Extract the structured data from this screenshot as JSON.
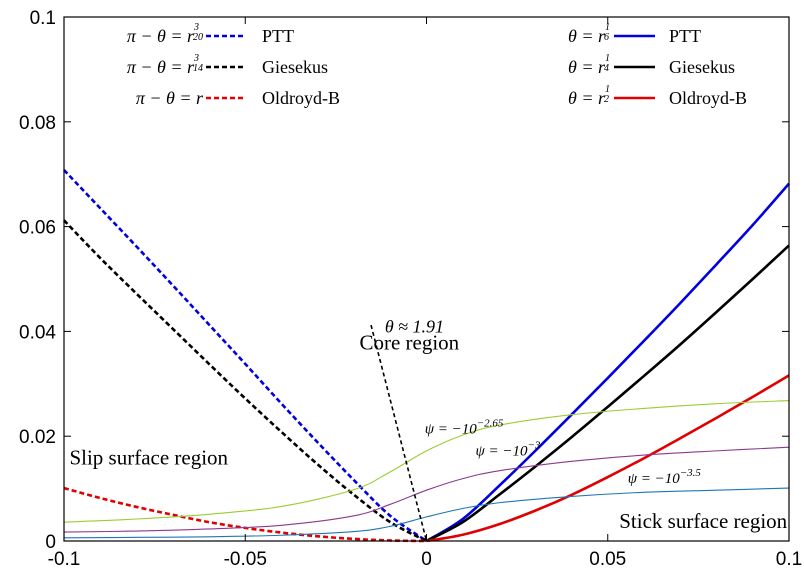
{
  "chart_data": {
    "type": "line",
    "xlim": [
      -0.1,
      0.1
    ],
    "ylim": [
      0,
      0.1
    ],
    "x_ticks": [
      -0.1,
      -0.05,
      0,
      0.05,
      0.1
    ],
    "x_tick_labels": [
      "-0.1",
      "-0.05",
      "0",
      "0.05",
      "0.1"
    ],
    "y_ticks": [
      0,
      0.02,
      0.04,
      0.06,
      0.08,
      0.1
    ],
    "y_tick_labels": [
      "0",
      "0.02",
      "0.04",
      "0.06",
      "0.08",
      "0.1"
    ],
    "grid": false,
    "series": [
      {
        "name": "PTT",
        "color": "#0000e0",
        "dash": true,
        "x": [
          -0.1,
          -0.09,
          -0.08,
          -0.07,
          -0.06,
          -0.05,
          -0.04,
          -0.03,
          -0.02,
          -0.01,
          0
        ],
        "y": [
          0.0708,
          0.0635,
          0.0562,
          0.0488,
          0.0413,
          0.0338,
          0.0262,
          0.0188,
          0.0116,
          0.0048,
          0
        ]
      },
      {
        "name": "Giesekus",
        "color": "#000000",
        "dash": true,
        "x": [
          -0.1,
          -0.09,
          -0.08,
          -0.07,
          -0.06,
          -0.05,
          -0.04,
          -0.03,
          -0.02,
          -0.01,
          0
        ],
        "y": [
          0.0612,
          0.054,
          0.0472,
          0.0405,
          0.0338,
          0.0272,
          0.0208,
          0.0146,
          0.0088,
          0.0036,
          0
        ]
      },
      {
        "name": "Oldroyd-B",
        "color": "#e00000",
        "dash": true,
        "x": [
          -0.1,
          -0.09,
          -0.08,
          -0.07,
          -0.06,
          -0.05,
          -0.04,
          -0.03,
          -0.02,
          -0.01,
          0
        ],
        "y": [
          0.0101,
          0.0082,
          0.0065,
          0.005,
          0.0036,
          0.0025,
          0.0016,
          0.0009,
          0.0004,
          0.0001,
          0
        ]
      },
      {
        "name": "PTT",
        "color": "#0000e0",
        "dash": false,
        "x": [
          0,
          0.01,
          0.02,
          0.03,
          0.04,
          0.05,
          0.06,
          0.07,
          0.08,
          0.09,
          0.1
        ],
        "y": [
          0,
          0.0042,
          0.0105,
          0.0172,
          0.0241,
          0.0311,
          0.0382,
          0.0454,
          0.0528,
          0.0603,
          0.0682
        ]
      },
      {
        "name": "Giesekus",
        "color": "#000000",
        "dash": false,
        "x": [
          0,
          0.01,
          0.02,
          0.03,
          0.04,
          0.05,
          0.06,
          0.07,
          0.08,
          0.09,
          0.1
        ],
        "y": [
          0,
          0.0036,
          0.0088,
          0.0142,
          0.0198,
          0.0256,
          0.0315,
          0.0375,
          0.0437,
          0.05,
          0.0564
        ]
      },
      {
        "name": "Oldroyd-B",
        "color": "#e00000",
        "dash": false,
        "x": [
          0,
          0.01,
          0.02,
          0.03,
          0.04,
          0.05,
          0.06,
          0.07,
          0.08,
          0.09,
          0.1
        ],
        "y": [
          0,
          0.0012,
          0.0032,
          0.0058,
          0.0088,
          0.0122,
          0.0158,
          0.0196,
          0.0235,
          0.0275,
          0.0316
        ]
      },
      {
        "name": "ψ = −10^−2.65",
        "color": "#9acd32",
        "dash": false,
        "x": [
          -0.1,
          -0.08,
          -0.06,
          -0.04,
          -0.02,
          -0.01,
          0,
          0.01,
          0.02,
          0.04,
          0.06,
          0.08,
          0.1
        ],
        "y": [
          0.0036,
          0.0042,
          0.0051,
          0.0066,
          0.0098,
          0.0132,
          0.0172,
          0.0202,
          0.0221,
          0.0241,
          0.0253,
          0.0262,
          0.0268
        ]
      },
      {
        "name": "ψ = −10^−3",
        "color": "#8b3a8b",
        "dash": false,
        "x": [
          -0.1,
          -0.08,
          -0.06,
          -0.04,
          -0.02,
          -0.01,
          0,
          0.01,
          0.02,
          0.04,
          0.06,
          0.08,
          0.1
        ],
        "y": [
          0.0017,
          0.0019,
          0.0023,
          0.003,
          0.0048,
          0.007,
          0.0097,
          0.0119,
          0.0134,
          0.0152,
          0.0164,
          0.0172,
          0.0179
        ]
      },
      {
        "name": "ψ = −10^−3.5",
        "color": "#1f77b4",
        "dash": false,
        "x": [
          -0.1,
          -0.08,
          -0.06,
          -0.04,
          -0.02,
          -0.01,
          0,
          0.01,
          0.02,
          0.04,
          0.06,
          0.08,
          0.1
        ],
        "y": [
          0.0006,
          0.0007,
          0.0008,
          0.0011,
          0.0018,
          0.0028,
          0.0046,
          0.0062,
          0.0073,
          0.0085,
          0.0093,
          0.0097,
          0.0101
        ]
      }
    ],
    "boundary_line": {
      "label": "θ ≈ 1.91",
      "color": "#000000",
      "dash": true,
      "x": [
        -0.0153,
        0
      ],
      "y": [
        0.0412,
        0
      ]
    },
    "legend_left": [
      {
        "formula": "π − θ = r",
        "exp_num": "3",
        "exp_den": "20",
        "name": "PTT",
        "color": "#0000e0",
        "dash": true
      },
      {
        "formula": "π − θ = r",
        "exp_num": "3",
        "exp_den": "14",
        "name": "Giesekus",
        "color": "#000000",
        "dash": true
      },
      {
        "formula": "π − θ = r",
        "exp_num": "",
        "exp_den": "",
        "name": "Oldroyd-B",
        "color": "#e00000",
        "dash": true
      }
    ],
    "legend_right": [
      {
        "formula": "θ = r",
        "exp_num": "1",
        "exp_den": "6",
        "name": "PTT",
        "color": "#0000e0",
        "dash": false
      },
      {
        "formula": "θ = r",
        "exp_num": "1",
        "exp_den": "4",
        "name": "Giesekus",
        "color": "#000000",
        "dash": false
      },
      {
        "formula": "θ = r",
        "exp_num": "1",
        "exp_den": "2",
        "name": "Oldroyd-B",
        "color": "#e00000",
        "dash": false
      }
    ],
    "annotations": {
      "core_region": {
        "text": "Core region",
        "x": -0.0185,
        "y": 0.0365
      },
      "slip_region": {
        "text": "Slip surface region",
        "x": -0.0985,
        "y": 0.0146
      },
      "stick_region": {
        "text": "Stick surface region",
        "x": 0.0995,
        "y": 0.0025
      },
      "psi_1": {
        "base": "ψ = −10",
        "exp": "−2.65",
        "x": -0.0005,
        "y": 0.0205
      },
      "psi_2": {
        "base": "ψ = −10",
        "exp": "−3",
        "x": 0.0135,
        "y": 0.0163
      },
      "psi_3": {
        "base": "ψ = −10",
        "exp": "−3.5",
        "x": 0.0555,
        "y": 0.0111
      },
      "theta": {
        "text": "θ ≈ 1.91",
        "x": -0.0115,
        "y": 0.0398
      }
    }
  }
}
